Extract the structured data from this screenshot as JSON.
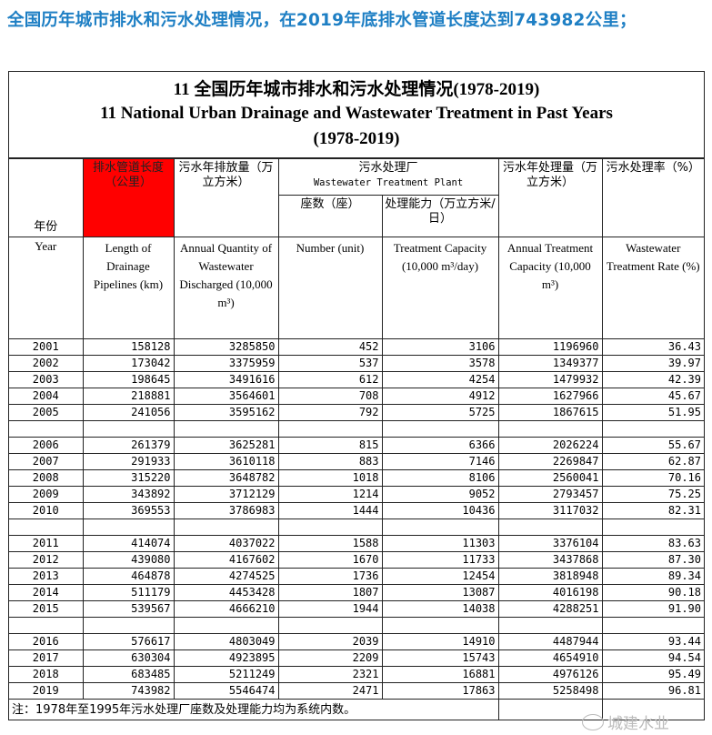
{
  "headline": "全国历年城市排水和污水处理情况，在2019年底排水管道长度达到743982公里；",
  "title_cn": "11 全国历年城市排水和污水处理情况(1978-2019)",
  "title_en": "11 National Urban Drainage and Wastewater Treatment in Past Years",
  "title_years": "(1978-2019)",
  "header": {
    "year_cn": "年份",
    "year_en": "Year",
    "c1_cn": "排水管道长度（公里）",
    "c1_en": "Length of Drainage Pipelines (km)",
    "c2_cn": "污水年排放量（万立方米）",
    "c2_en": "Annual Quantity of Wastewater Discharged (10,000 m³)",
    "plant_cn": "污水处理厂",
    "plant_en": "Wastewater Treatment Plant",
    "c3_cn": "座数（座）",
    "c3_en": "Number (unit)",
    "c4_cn": "处理能力（万立方米/日）",
    "c4_en": "Treatment Capacity (10,000 m³/day)",
    "c5_cn": "污水年处理量（万立方米）",
    "c5_en": "Annual Treatment Capacity (10,000 m³)",
    "c6_cn": "污水处理率（%）",
    "c6_en": "Wastewater Treatment Rate (%)"
  },
  "highlight_color": "#ff0000",
  "rows": [
    [
      "2001",
      "158128",
      "3285850",
      "452",
      "3106",
      "1196960",
      "36.43"
    ],
    [
      "2002",
      "173042",
      "3375959",
      "537",
      "3578",
      "1349377",
      "39.97"
    ],
    [
      "2003",
      "198645",
      "3491616",
      "612",
      "4254",
      "1479932",
      "42.39"
    ],
    [
      "2004",
      "218881",
      "3564601",
      "708",
      "4912",
      "1627966",
      "45.67"
    ],
    [
      "2005",
      "241056",
      "3595162",
      "792",
      "5725",
      "1867615",
      "51.95"
    ],
    [],
    [
      "2006",
      "261379",
      "3625281",
      "815",
      "6366",
      "2026224",
      "55.67"
    ],
    [
      "2007",
      "291933",
      "3610118",
      "883",
      "7146",
      "2269847",
      "62.87"
    ],
    [
      "2008",
      "315220",
      "3648782",
      "1018",
      "8106",
      "2560041",
      "70.16"
    ],
    [
      "2009",
      "343892",
      "3712129",
      "1214",
      "9052",
      "2793457",
      "75.25"
    ],
    [
      "2010",
      "369553",
      "3786983",
      "1444",
      "10436",
      "3117032",
      "82.31"
    ],
    [],
    [
      "2011",
      "414074",
      "4037022",
      "1588",
      "11303",
      "3376104",
      "83.63"
    ],
    [
      "2012",
      "439080",
      "4167602",
      "1670",
      "11733",
      "3437868",
      "87.30"
    ],
    [
      "2013",
      "464878",
      "4274525",
      "1736",
      "12454",
      "3818948",
      "89.34"
    ],
    [
      "2014",
      "511179",
      "4453428",
      "1807",
      "13087",
      "4016198",
      "90.18"
    ],
    [
      "2015",
      "539567",
      "4666210",
      "1944",
      "14038",
      "4288251",
      "91.90"
    ],
    [],
    [
      "2016",
      "576617",
      "4803049",
      "2039",
      "14910",
      "4487944",
      "93.44"
    ],
    [
      "2017",
      "630304",
      "4923895",
      "2209",
      "15743",
      "4654910",
      "94.54"
    ],
    [
      "2018",
      "683485",
      "5211249",
      "2321",
      "16881",
      "4976126",
      "95.49"
    ],
    [
      "2019",
      "743982",
      "5546474",
      "2471",
      "17863",
      "5258498",
      "96.81"
    ]
  ],
  "note": "注：1978年至1995年污水处理厂座数及处理能力均为系统内数。",
  "watermark": "城建水业"
}
